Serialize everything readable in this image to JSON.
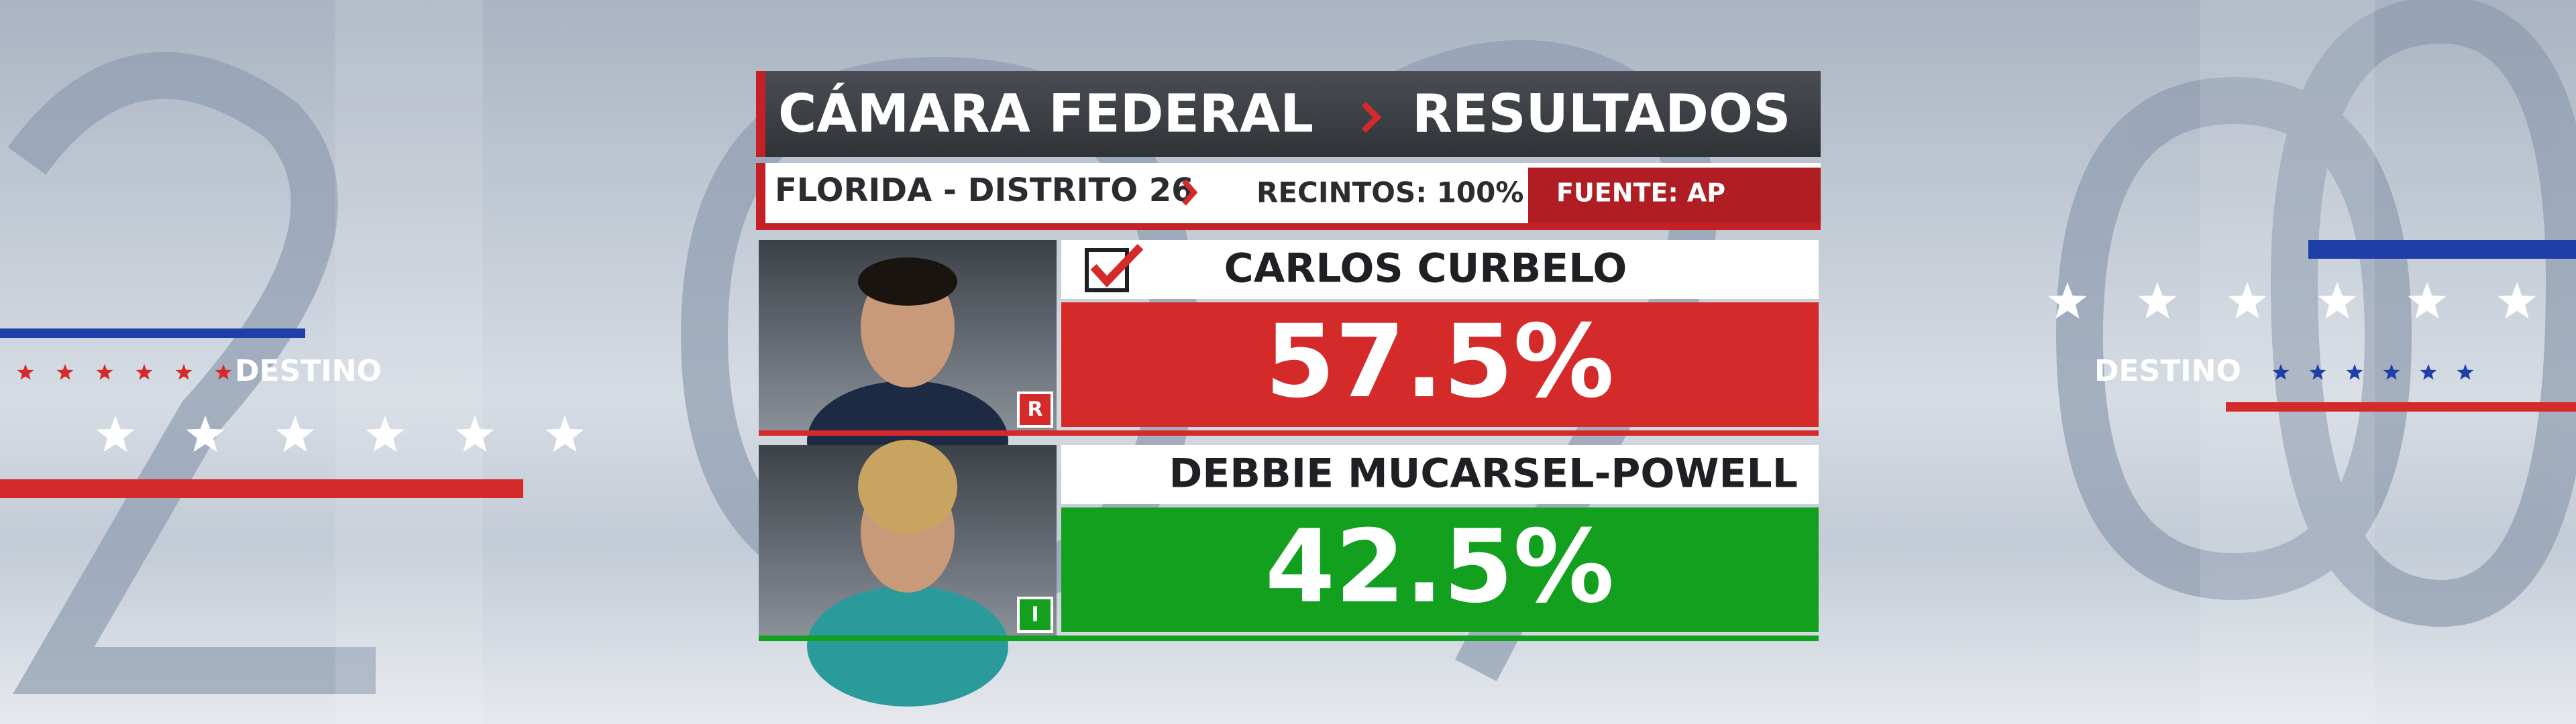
{
  "header": {
    "title": "CÁMARA FEDERAL",
    "section": "RESULTADOS"
  },
  "subheader": {
    "race": "FLORIDA - DISTRITO 26",
    "precincts": "RECINTOS: 100%",
    "source": "FUENTE: AP"
  },
  "branding": {
    "left": "DESTINO",
    "right": "DESTINO"
  },
  "candidates": [
    {
      "name": "CARLOS CURBELO",
      "result": "57.5%",
      "party": "R"
    },
    {
      "name": "DEBBIE MUCARSEL-POWELL",
      "result": "42.5%",
      "party": "I"
    }
  ]
}
